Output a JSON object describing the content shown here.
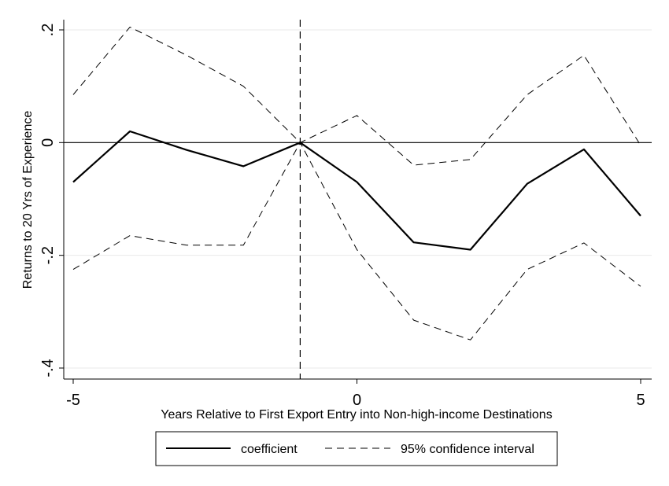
{
  "chart_data": {
    "type": "line",
    "title": "",
    "xlabel": "Years Relative to First Export Entry into Non-high-income Destinations",
    "ylabel": "Returns to 20 Yrs of Experience",
    "xlim": [
      -5,
      5
    ],
    "ylim": [
      -0.4,
      0.2
    ],
    "x_ticks": [
      -5,
      0,
      5
    ],
    "x_tick_labels": [
      "-5",
      "0",
      "5"
    ],
    "y_ticks": [
      -0.4,
      -0.2,
      0,
      0.2
    ],
    "y_tick_labels": [
      "-.4",
      "-.2",
      "0",
      ".2"
    ],
    "grid": "horizontal",
    "reference_lines": {
      "y": 0,
      "x": -1
    },
    "legend_position": "bottom",
    "x": [
      -5,
      -4,
      -3,
      -2,
      -1,
      0,
      1,
      2,
      3,
      4,
      5
    ],
    "series": [
      {
        "name": "coefficient",
        "style": "solid",
        "color": "#000000",
        "values": [
          -0.07,
          0.02,
          -0.013,
          -0.042,
          0,
          -0.07,
          -0.177,
          -0.19,
          -0.073,
          -0.012,
          -0.13
        ]
      },
      {
        "name": "95% confidence interval",
        "style": "dashed",
        "color": "#000000",
        "band": "upper",
        "values": [
          0.085,
          0.205,
          0.155,
          0.1,
          0,
          0.048,
          -0.04,
          -0.03,
          0.085,
          0.155,
          -0.005
        ]
      },
      {
        "name": "95% confidence interval",
        "style": "dashed",
        "color": "#000000",
        "band": "lower",
        "values": [
          -0.225,
          -0.165,
          -0.182,
          -0.182,
          0,
          -0.19,
          -0.315,
          -0.35,
          -0.225,
          -0.178,
          -0.255
        ]
      }
    ],
    "legend": [
      {
        "label": "coefficient",
        "style": "solid"
      },
      {
        "label": "95% confidence interval",
        "style": "dashed"
      }
    ]
  }
}
